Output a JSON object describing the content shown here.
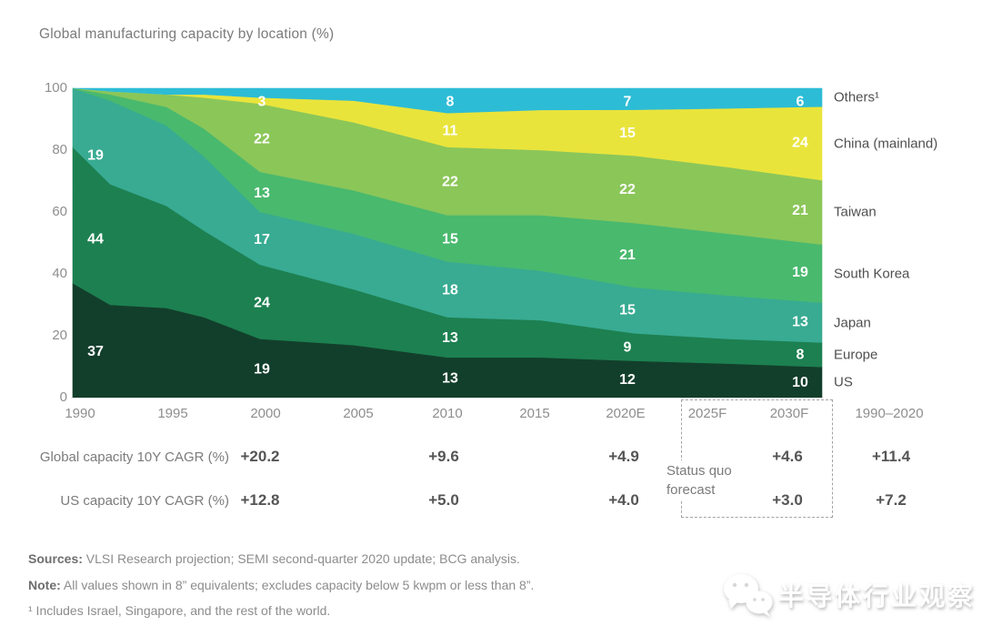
{
  "chart_data": {
    "type": "area",
    "stacked": true,
    "title": "Global manufacturing capacity by location (%)",
    "ylim": [
      0,
      100
    ],
    "grid": false,
    "legend_position": "right",
    "y_ticks": [
      100,
      80,
      60,
      40,
      20,
      0
    ],
    "x_tick_labels": [
      "1990",
      "1995",
      "2000",
      "2005",
      "2010",
      "2015",
      "2020E",
      "2025F",
      "2030F"
    ],
    "x": [
      1990,
      1992,
      1995,
      1997,
      2000,
      2005,
      2010,
      2015,
      2020,
      2025,
      2030
    ],
    "series": [
      {
        "name": "US",
        "legend_label": "US",
        "color": "#123f2b",
        "values": [
          37,
          30,
          29,
          26,
          19,
          17,
          13,
          13,
          12,
          11,
          10
        ]
      },
      {
        "name": "Europe",
        "legend_label": "Europe",
        "color": "#1d8051",
        "values": [
          44,
          39,
          33,
          28,
          24,
          18,
          13,
          12,
          9,
          8,
          8
        ]
      },
      {
        "name": "Japan",
        "legend_label": "Japan",
        "color": "#38ab92",
        "values": [
          19,
          27,
          26,
          24,
          17,
          18,
          18,
          16,
          15,
          14,
          13
        ]
      },
      {
        "name": "South Korea",
        "legend_label": "South Korea",
        "color": "#49b96e",
        "values": [
          0,
          2,
          6,
          9,
          13,
          14,
          15,
          18,
          21,
          20,
          19
        ]
      },
      {
        "name": "Taiwan",
        "legend_label": "Taiwan",
        "color": "#8bc659",
        "values": [
          0,
          1,
          4,
          10,
          22,
          22,
          22,
          21,
          22,
          21.5,
          21
        ]
      },
      {
        "name": "China (mainland)",
        "legend_label": "China (mainland)",
        "color": "#e9e43c",
        "values": [
          0,
          0,
          0,
          1,
          2,
          7,
          11,
          13,
          15,
          19,
          24
        ]
      },
      {
        "name": "Others",
        "legend_label": "Others¹",
        "color": "#2dbcd6",
        "values": [
          0,
          1,
          2,
          2,
          3,
          4,
          8,
          7,
          7,
          6.5,
          6
        ]
      }
    ],
    "value_labels": [
      {
        "year": 1990,
        "values": {
          "US": "37",
          "Europe": "44",
          "Japan": "19"
        }
      },
      {
        "year": 2000,
        "values": {
          "US": "19",
          "Europe": "24",
          "Japan": "17",
          "South Korea": "13",
          "Taiwan": "22",
          "Others": "3"
        }
      },
      {
        "year": 2010,
        "values": {
          "US": "13",
          "Europe": "13",
          "Japan": "18",
          "South Korea": "15",
          "Taiwan": "22",
          "China (mainland)": "11",
          "Others": "8"
        }
      },
      {
        "year": 2020,
        "values": {
          "US": "12",
          "Europe": "9",
          "Japan": "15",
          "South Korea": "21",
          "Taiwan": "22",
          "China (mainland)": "15",
          "Others": "7"
        }
      },
      {
        "year": 2030,
        "values": {
          "US": "10",
          "Europe": "8",
          "Japan": "13",
          "South Korea": "19",
          "Taiwan": "21",
          "China (mainland)": "24",
          "Others": "6"
        }
      }
    ]
  },
  "cagr_table": {
    "period_label": "1990–2020",
    "rows": [
      {
        "label": "Global capacity 10Y CAGR (%)",
        "values": {
          "2000": "+20.2",
          "2010": "+9.6",
          "2020E": "+4.9",
          "2030F": "+4.6",
          "1990–2020": "+11.4"
        }
      },
      {
        "label": "US capacity 10Y CAGR (%)",
        "values": {
          "2000": "+12.8",
          "2010": "+5.0",
          "2020E": "+4.0",
          "2030F": "+3.0",
          "1990–2020": "+7.2"
        }
      }
    ],
    "status_quo_note": [
      "Status quo",
      "forecast"
    ]
  },
  "footer": {
    "sources_label": "Sources:",
    "sources_text": " VLSI Research projection; SEMI second-quarter 2020 update; BCG analysis.",
    "note_label": "Note:",
    "note_text": " All values shown in 8” equivalents; excludes capacity below 5 kwpm or less than 8”.",
    "footnote": "¹ Includes Israel, Singapore, and the rest of the world."
  },
  "watermark": {
    "text": "半导体行业观察",
    "icon": "wechat-icon"
  }
}
